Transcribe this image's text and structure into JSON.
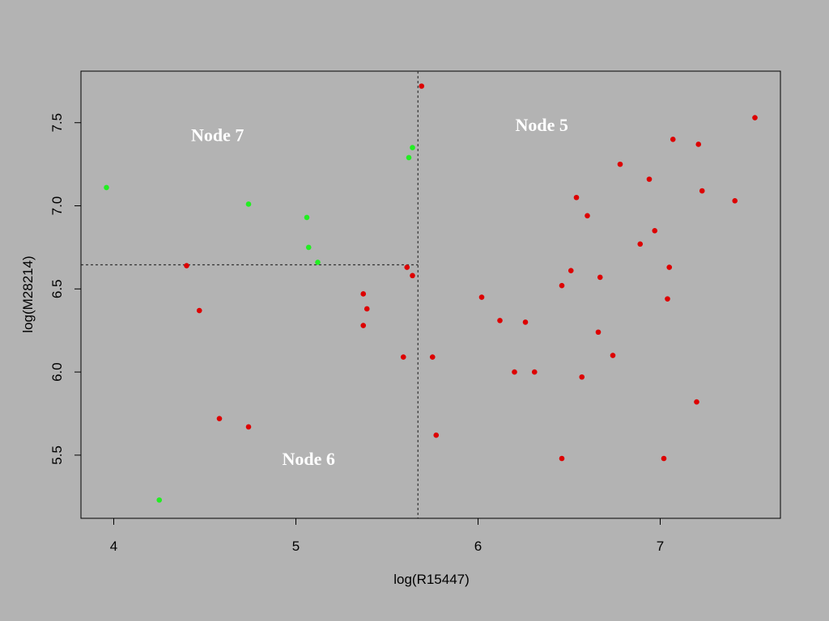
{
  "chart_data": {
    "type": "scatter",
    "title": "",
    "xlabel": "log(R15447)",
    "ylabel": "log(M28214)",
    "xlim": [
      3.82,
      7.66
    ],
    "ylim": [
      5.12,
      7.81
    ],
    "x_ticks": [
      {
        "value": 4,
        "label": "4"
      },
      {
        "value": 5,
        "label": "5"
      },
      {
        "value": 6,
        "label": "6"
      },
      {
        "value": 7,
        "label": "7"
      }
    ],
    "y_ticks": [
      {
        "value": 5.5,
        "label": "5.5"
      },
      {
        "value": 6.0,
        "label": "6.0"
      },
      {
        "value": 6.5,
        "label": "6.5"
      },
      {
        "value": 7.0,
        "label": "7.0"
      },
      {
        "value": 7.5,
        "label": "7.5"
      }
    ],
    "grid": false,
    "colors": {
      "background": "#b3b3b3",
      "plot_border": "#000000",
      "red": "#dd0000",
      "green": "#22ee22",
      "split_line": "#333333"
    },
    "splits": {
      "x_split": 5.67,
      "y_split": 6.645,
      "y_split_x_end": 5.67
    },
    "annotations": [
      {
        "text": "Node 7",
        "x": 4.57,
        "y": 7.39
      },
      {
        "text": "Node 5",
        "x": 6.35,
        "y": 7.45
      },
      {
        "text": "Node 6",
        "x": 5.07,
        "y": 5.44
      }
    ],
    "series": [
      {
        "color": "#22ee22",
        "points": [
          [
            3.96,
            7.11
          ],
          [
            4.74,
            7.01
          ],
          [
            5.06,
            6.93
          ],
          [
            5.07,
            6.75
          ],
          [
            5.12,
            6.66
          ],
          [
            5.62,
            7.29
          ],
          [
            5.64,
            7.35
          ],
          [
            4.25,
            5.23
          ]
        ]
      },
      {
        "color": "#dd0000",
        "points": [
          [
            5.69,
            7.72
          ],
          [
            7.52,
            7.53
          ],
          [
            7.07,
            7.4
          ],
          [
            7.21,
            7.37
          ],
          [
            6.78,
            7.25
          ],
          [
            6.94,
            7.16
          ],
          [
            7.23,
            7.09
          ],
          [
            6.54,
            7.05
          ],
          [
            7.41,
            7.03
          ],
          [
            6.6,
            6.94
          ],
          [
            6.97,
            6.85
          ],
          [
            6.89,
            6.77
          ],
          [
            7.05,
            6.63
          ],
          [
            6.51,
            6.61
          ],
          [
            6.67,
            6.57
          ],
          [
            6.46,
            6.52
          ],
          [
            7.04,
            6.44
          ],
          [
            6.02,
            6.45
          ],
          [
            6.12,
            6.31
          ],
          [
            6.26,
            6.3
          ],
          [
            6.66,
            6.24
          ],
          [
            6.74,
            6.1
          ],
          [
            5.75,
            6.09
          ],
          [
            5.59,
            6.09
          ],
          [
            6.2,
            6.0
          ],
          [
            6.31,
            6.0
          ],
          [
            6.57,
            5.97
          ],
          [
            7.2,
            5.82
          ],
          [
            5.77,
            5.62
          ],
          [
            6.46,
            5.48
          ],
          [
            7.02,
            5.48
          ],
          [
            5.61,
            6.63
          ],
          [
            5.64,
            6.58
          ],
          [
            5.37,
            6.47
          ],
          [
            5.39,
            6.38
          ],
          [
            5.37,
            6.28
          ],
          [
            4.4,
            6.64
          ],
          [
            4.47,
            6.37
          ],
          [
            4.58,
            5.72
          ],
          [
            4.74,
            5.67
          ]
        ]
      }
    ]
  }
}
